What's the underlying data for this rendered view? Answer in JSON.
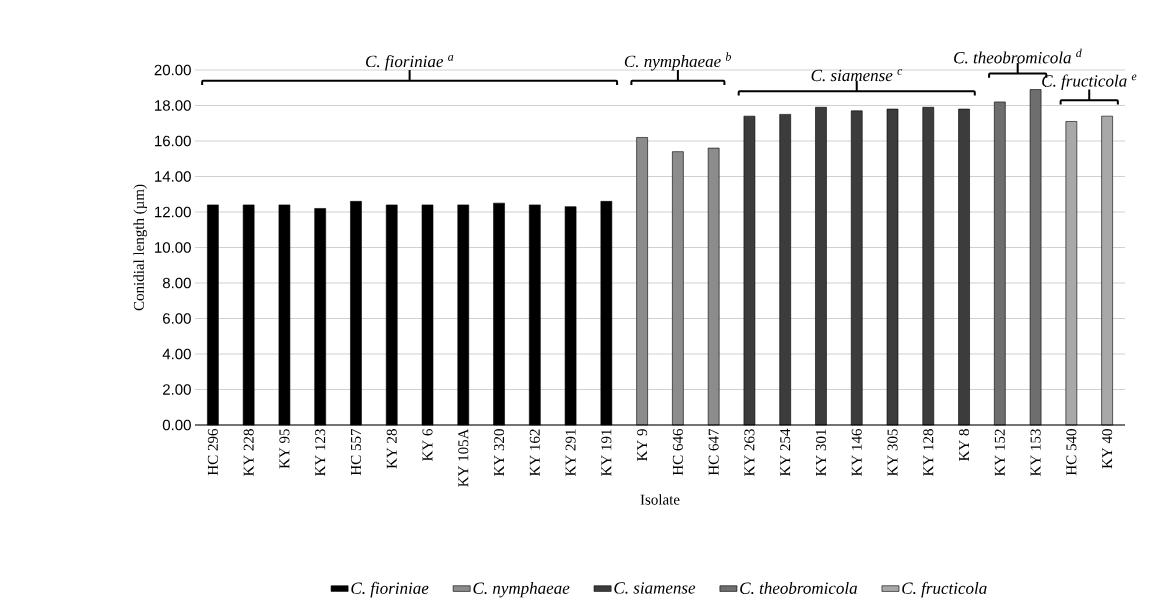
{
  "chart_data": {
    "type": "bar",
    "xlabel": "Isolate",
    "ylabel": "Conidial length (µm)",
    "categories": [
      "HC 296",
      "KY 228",
      "KY 95",
      "KY 123",
      "HC 557",
      "KY 28",
      "KY 6",
      "KY 105A",
      "KY 320",
      "KY 162",
      "KY 291",
      "KY 191",
      "KY 9",
      "HC 646",
      "HC 647",
      "KY 263",
      "KY 254",
      "KY 301",
      "KY 146",
      "KY 305",
      "KY 128",
      "KY 8",
      "KY 152",
      "KY 153",
      "HC 540",
      "KY 40"
    ],
    "series": [
      {
        "name": "C. fioriniae",
        "color": "#000000",
        "values": [
          12.4,
          12.4,
          12.4,
          12.2,
          12.6,
          12.4,
          12.4,
          12.4,
          12.5,
          12.4,
          12.3,
          12.6,
          null,
          null,
          null,
          null,
          null,
          null,
          null,
          null,
          null,
          null,
          null,
          null,
          null,
          null
        ]
      },
      {
        "name": "C. nymphaeae",
        "color": "#8c8c8c",
        "values": [
          null,
          null,
          null,
          null,
          null,
          null,
          null,
          null,
          null,
          null,
          null,
          null,
          16.2,
          15.4,
          15.6,
          null,
          null,
          null,
          null,
          null,
          null,
          null,
          null,
          null,
          null,
          null
        ]
      },
      {
        "name": "C. siamense",
        "color": "#3c3c3c",
        "values": [
          null,
          null,
          null,
          null,
          null,
          null,
          null,
          null,
          null,
          null,
          null,
          null,
          null,
          null,
          null,
          17.4,
          17.5,
          17.9,
          17.7,
          17.8,
          17.9,
          17.8,
          null,
          null,
          null,
          null
        ]
      },
      {
        "name": "C. theobromicola",
        "color": "#6e6e6e",
        "values": [
          null,
          null,
          null,
          null,
          null,
          null,
          null,
          null,
          null,
          null,
          null,
          null,
          null,
          null,
          null,
          null,
          null,
          null,
          null,
          null,
          null,
          null,
          18.2,
          18.9,
          null,
          null
        ]
      },
      {
        "name": "C. fructicola",
        "color": "#a8a8a8",
        "values": [
          null,
          null,
          null,
          null,
          null,
          null,
          null,
          null,
          null,
          null,
          null,
          null,
          null,
          null,
          null,
          null,
          null,
          null,
          null,
          null,
          null,
          null,
          null,
          null,
          17.1,
          17.4
        ]
      }
    ],
    "annotations": [
      "C. fioriniae $^{a}$",
      "C. nymphaeae $^{b}$",
      "C. siamense $^{c}$",
      "C. theobromicola $^{d}$",
      "C. fructicola $^{e}$"
    ],
    "ylim": [
      0,
      20
    ],
    "yticks": [
      {
        "value": 0,
        "label": "0.00"
      },
      {
        "value": 2,
        "label": "2.00"
      },
      {
        "value": 4,
        "label": "4.00"
      },
      {
        "value": 6,
        "label": "6.00"
      },
      {
        "value": 8,
        "label": "8.00"
      },
      {
        "value": 10,
        "label": "10.00"
      },
      {
        "value": 12,
        "label": "12.00"
      },
      {
        "value": 14,
        "label": "14.00"
      },
      {
        "value": 16,
        "label": "16.00"
      },
      {
        "value": 18,
        "label": "18.00"
      },
      {
        "value": 20,
        "label": "20.00"
      }
    ],
    "grid": "y",
    "legend": "bottom"
  }
}
